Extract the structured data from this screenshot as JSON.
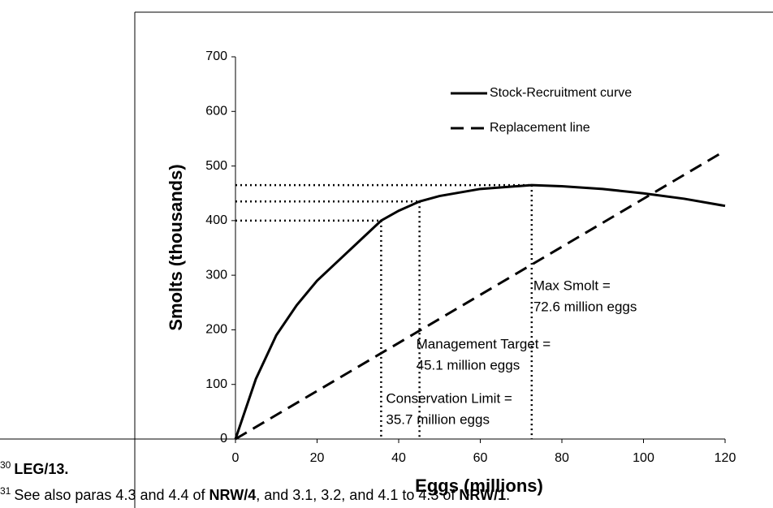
{
  "chart_data": {
    "type": "line",
    "x_label": "Eggs (millions)",
    "y_label": "Smolts (thousands)",
    "xlim": [
      0,
      120
    ],
    "xticks": [
      0,
      20,
      40,
      60,
      80,
      100,
      120
    ],
    "ylim": [
      0,
      700
    ],
    "yticks": [
      0,
      100,
      200,
      300,
      400,
      500,
      600,
      700
    ],
    "series": [
      {
        "name": "Stock-Recruitment curve",
        "color": "#000000",
        "dash": "solid",
        "x": [
          0,
          5,
          10,
          15,
          20,
          25,
          30,
          35.7,
          40,
          45.1,
          50,
          60,
          72.6,
          80,
          90,
          100,
          110,
          120
        ],
        "values": [
          0,
          110,
          190,
          245,
          290,
          325,
          360,
          400,
          418,
          435,
          445,
          458,
          465,
          463,
          458,
          450,
          440,
          427
        ]
      },
      {
        "name": "Replacement line",
        "color": "#000000",
        "dash": "dashed",
        "x": [
          0,
          120
        ],
        "values": [
          0,
          528
        ]
      }
    ],
    "markers": [
      {
        "x": 35.7,
        "y": 400,
        "lines": [
          "Conservation  Limit =",
          "35.7 million eggs"
        ]
      },
      {
        "x": 45.1,
        "y": 435,
        "lines": [
          "Management Target =",
          "45.1 million eggs"
        ]
      },
      {
        "x": 72.6,
        "y": 465,
        "lines": [
          "Max Smolt =",
          "72.6 million eggs"
        ]
      }
    ]
  },
  "footnotes": [
    {
      "number": "30",
      "parts": [
        {
          "text": "LEG/13.",
          "bold": true
        }
      ]
    },
    {
      "number": "31",
      "parts": [
        {
          "text": "See also paras 4.3 and 4.4 of ",
          "bold": false
        },
        {
          "text": "NRW/4",
          "bold": true
        },
        {
          "text": ", and 3.1, 3.2, and 4.1 to 4.3 of ",
          "bold": false
        },
        {
          "text": "NRW/1",
          "bold": true
        },
        {
          "text": ".",
          "bold": false
        }
      ]
    }
  ]
}
